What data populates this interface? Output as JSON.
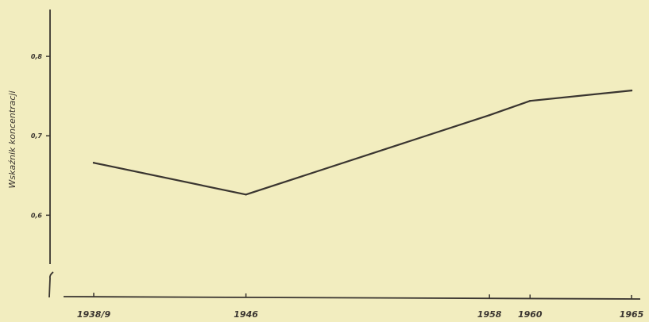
{
  "chart_data": {
    "type": "line",
    "title": "",
    "xlabel": "",
    "ylabel": "Wskaźnik koncentracji",
    "x": [
      "1938/9",
      "1946",
      "1958",
      "1960",
      "1965"
    ],
    "x_positions": [
      1938.5,
      1946,
      1958,
      1960,
      1965
    ],
    "y_ticks": [
      "0,6",
      "0,7",
      "0,8"
    ],
    "y_tick_values": [
      0.6,
      0.7,
      0.8
    ],
    "ylim": [
      0.48,
      0.86
    ],
    "axis_break": true,
    "grid": false,
    "series": [
      {
        "values": [
          0.666,
          0.626,
          0.726,
          0.744,
          0.757
        ],
        "color": "#3a3530"
      }
    ]
  }
}
